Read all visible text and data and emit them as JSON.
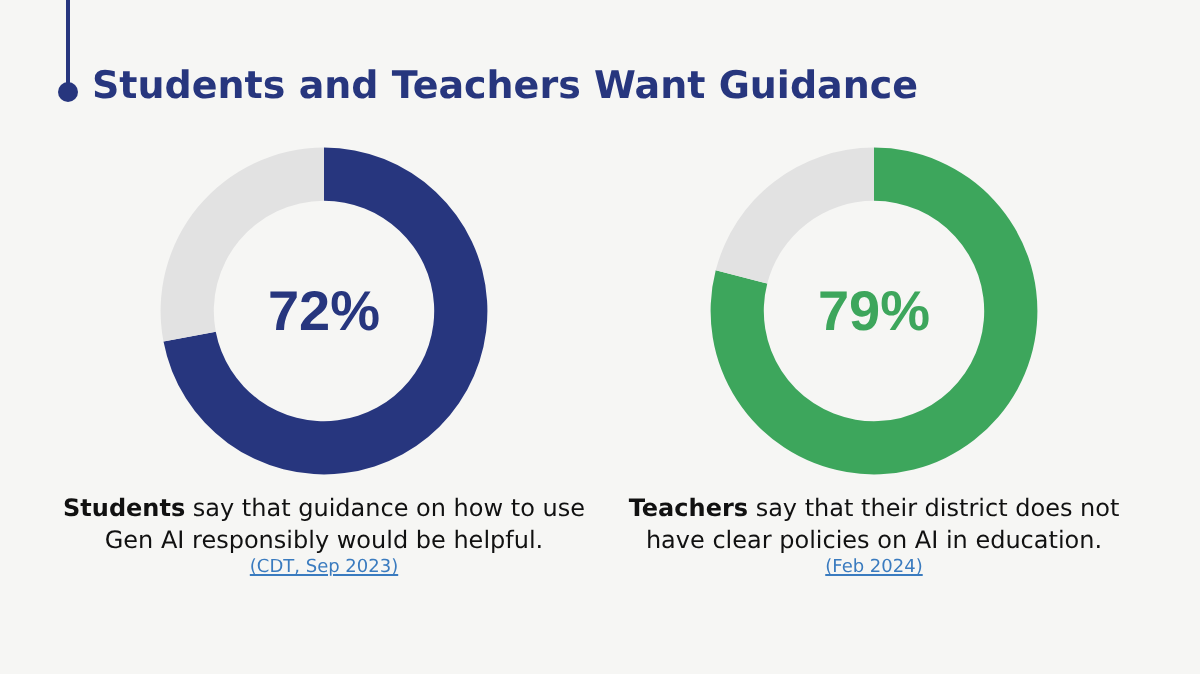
{
  "chart_data": [
    {
      "type": "donut",
      "title": "Students and Teachers Want Guidance",
      "categories": [
        null,
        null
      ],
      "values": [
        72,
        28
      ],
      "colors": [
        "#27367e",
        "#e2e2e2"
      ],
      "value_labels": [
        "72%",
        null
      ],
      "annotations": [
        "Students",
        " say that guidance on how to use Gen AI responsibly would be helpful.",
        "(CDT, Sep 2023)"
      ]
    },
    {
      "type": "donut",
      "categories": [
        null,
        null
      ],
      "values": [
        79,
        21
      ],
      "colors": [
        "#3da65c",
        "#e2e2e2"
      ],
      "value_labels": [
        "79%",
        null
      ],
      "annotations": [
        "Teachers",
        " say that their district does not have clear policies on AI in education.",
        "(Feb 2024)"
      ]
    }
  ]
}
